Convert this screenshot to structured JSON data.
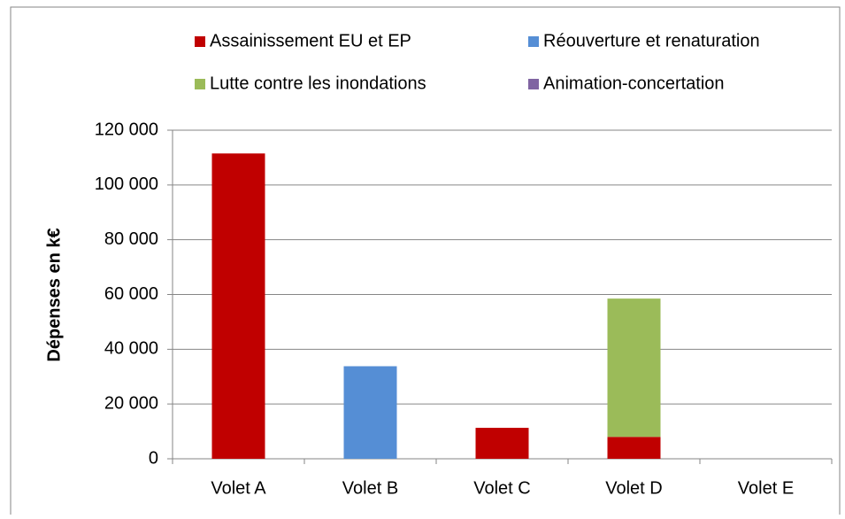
{
  "chart_data": {
    "type": "stacked_bar",
    "y_label": "Dépenses en k€",
    "categories": [
      "Volet A",
      "Volet B",
      "Volet C",
      "Volet D",
      "Volet E"
    ],
    "series": [
      {
        "name": "Assainissement EU et EP",
        "color": "#c00000",
        "values": [
          111500,
          0,
          11300,
          8000,
          0
        ]
      },
      {
        "name": "Réouverture et renaturation",
        "color": "#558ed5",
        "values": [
          0,
          33800,
          0,
          0,
          0
        ]
      },
      {
        "name": "Lutte contre les inondations",
        "color": "#9bbb59",
        "values": [
          0,
          0,
          0,
          50500,
          0
        ]
      },
      {
        "name": "Animation-concertation",
        "color": "#8064a2",
        "values": [
          0,
          0,
          0,
          0,
          0
        ]
      }
    ],
    "ylim": [
      0,
      120000
    ],
    "yticks": [
      0,
      {
        "value": 20000,
        "label": "20 000"
      },
      {
        "value": 40000,
        "label": "40 000"
      },
      {
        "value": 60000,
        "label": "60 000"
      },
      {
        "value": 80000,
        "label": "80 000"
      },
      {
        "value": 100000,
        "label": "100 000"
      },
      {
        "value": 120000,
        "label": "120 000"
      }
    ],
    "grid": true
  }
}
